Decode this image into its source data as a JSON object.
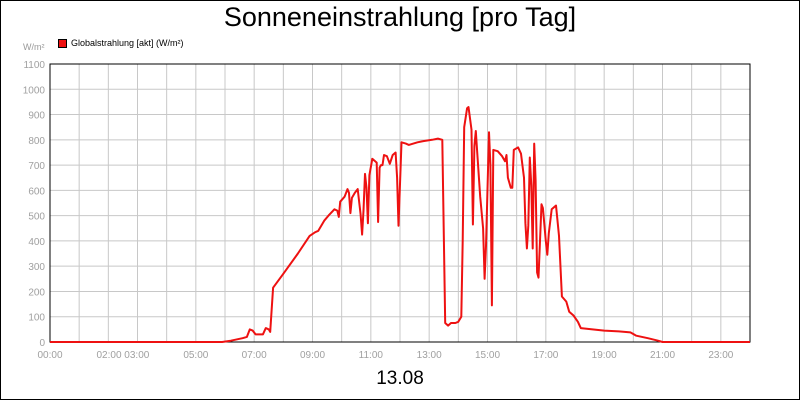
{
  "chart_data": {
    "type": "line",
    "title": "Sonneneinstrahlung [pro Tag]",
    "unit_label": "W/m²",
    "xlabel": "13.08",
    "ylabel": "",
    "x_unit": "hours",
    "xlim": [
      0,
      24
    ],
    "ylim": [
      0,
      1100
    ],
    "y_ticks": [
      0,
      100,
      200,
      300,
      400,
      500,
      600,
      700,
      800,
      900,
      1000,
      1100
    ],
    "x_ticks": [
      {
        "pos": 0,
        "label": "00:00"
      },
      {
        "pos": 2.5,
        "label": "02:00 03:00"
      },
      {
        "pos": 5,
        "label": "05:00"
      },
      {
        "pos": 7,
        "label": "07:00"
      },
      {
        "pos": 9,
        "label": "09:00"
      },
      {
        "pos": 11,
        "label": "11:00"
      },
      {
        "pos": 13,
        "label": "13:00"
      },
      {
        "pos": 15,
        "label": "15:00"
      },
      {
        "pos": 17,
        "label": "17:00"
      },
      {
        "pos": 19,
        "label": "19:00"
      },
      {
        "pos": 21,
        "label": "21:00"
      },
      {
        "pos": 23,
        "label": "23:00"
      }
    ],
    "grid": true,
    "legend_position": "top-left",
    "colors": {
      "series": "#ee1111",
      "grid": "#c8c8c8",
      "axis": "#000000"
    },
    "series": [
      {
        "name": "Globalstrahlung [akt] (W/m²)",
        "points": [
          [
            0,
            0
          ],
          [
            5.9,
            0
          ],
          [
            6.2,
            5
          ],
          [
            6.6,
            15
          ],
          [
            6.75,
            20
          ],
          [
            6.85,
            50
          ],
          [
            6.95,
            45
          ],
          [
            7.05,
            30
          ],
          [
            7.3,
            30
          ],
          [
            7.4,
            55
          ],
          [
            7.5,
            50
          ],
          [
            7.55,
            40
          ],
          [
            7.65,
            215
          ],
          [
            8.0,
            270
          ],
          [
            8.5,
            350
          ],
          [
            8.9,
            420
          ],
          [
            9.1,
            435
          ],
          [
            9.2,
            440
          ],
          [
            9.4,
            480
          ],
          [
            9.55,
            500
          ],
          [
            9.75,
            525
          ],
          [
            9.85,
            520
          ],
          [
            9.9,
            495
          ],
          [
            9.95,
            555
          ],
          [
            10.1,
            575
          ],
          [
            10.2,
            605
          ],
          [
            10.25,
            590
          ],
          [
            10.3,
            510
          ],
          [
            10.35,
            570
          ],
          [
            10.45,
            590
          ],
          [
            10.55,
            605
          ],
          [
            10.65,
            505
          ],
          [
            10.7,
            425
          ],
          [
            10.75,
            520
          ],
          [
            10.8,
            665
          ],
          [
            10.85,
            610
          ],
          [
            10.9,
            470
          ],
          [
            10.95,
            660
          ],
          [
            11.05,
            725
          ],
          [
            11.2,
            710
          ],
          [
            11.25,
            475
          ],
          [
            11.3,
            690
          ],
          [
            11.35,
            700
          ],
          [
            11.4,
            700
          ],
          [
            11.45,
            740
          ],
          [
            11.55,
            735
          ],
          [
            11.65,
            705
          ],
          [
            11.75,
            740
          ],
          [
            11.85,
            750
          ],
          [
            11.9,
            650
          ],
          [
            11.95,
            460
          ],
          [
            12.05,
            790
          ],
          [
            12.2,
            785
          ],
          [
            12.3,
            780
          ],
          [
            12.6,
            790
          ],
          [
            12.8,
            795
          ],
          [
            13.1,
            800
          ],
          [
            13.3,
            805
          ],
          [
            13.45,
            800
          ],
          [
            13.55,
            75
          ],
          [
            13.65,
            65
          ],
          [
            13.75,
            75
          ],
          [
            13.9,
            75
          ],
          [
            14.0,
            80
          ],
          [
            14.1,
            100
          ],
          [
            14.15,
            400
          ],
          [
            14.2,
            850
          ],
          [
            14.3,
            925
          ],
          [
            14.35,
            930
          ],
          [
            14.45,
            840
          ],
          [
            14.5,
            465
          ],
          [
            14.55,
            775
          ],
          [
            14.6,
            835
          ],
          [
            14.65,
            745
          ],
          [
            14.75,
            575
          ],
          [
            14.85,
            450
          ],
          [
            14.9,
            250
          ],
          [
            14.95,
            380
          ],
          [
            15.05,
            830
          ],
          [
            15.1,
            700
          ],
          [
            15.15,
            145
          ],
          [
            15.2,
            760
          ],
          [
            15.35,
            755
          ],
          [
            15.5,
            735
          ],
          [
            15.6,
            715
          ],
          [
            15.65,
            740
          ],
          [
            15.7,
            650
          ],
          [
            15.8,
            610
          ],
          [
            15.85,
            610
          ],
          [
            15.9,
            760
          ],
          [
            16.05,
            770
          ],
          [
            16.15,
            745
          ],
          [
            16.25,
            650
          ],
          [
            16.3,
            470
          ],
          [
            16.35,
            370
          ],
          [
            16.4,
            460
          ],
          [
            16.45,
            730
          ],
          [
            16.5,
            620
          ],
          [
            16.55,
            370
          ],
          [
            16.6,
            785
          ],
          [
            16.65,
            640
          ],
          [
            16.7,
            275
          ],
          [
            16.75,
            255
          ],
          [
            16.8,
            400
          ],
          [
            16.85,
            545
          ],
          [
            16.9,
            530
          ],
          [
            17.0,
            400
          ],
          [
            17.05,
            345
          ],
          [
            17.1,
            430
          ],
          [
            17.2,
            525
          ],
          [
            17.35,
            540
          ],
          [
            17.45,
            420
          ],
          [
            17.55,
            180
          ],
          [
            17.7,
            160
          ],
          [
            17.8,
            120
          ],
          [
            17.95,
            105
          ],
          [
            18.1,
            80
          ],
          [
            18.2,
            55
          ],
          [
            18.6,
            50
          ],
          [
            19.0,
            45
          ],
          [
            19.5,
            42
          ],
          [
            19.9,
            38
          ],
          [
            20.1,
            25
          ],
          [
            20.5,
            15
          ],
          [
            20.85,
            5
          ],
          [
            21.0,
            0
          ],
          [
            24,
            0
          ]
        ]
      }
    ]
  }
}
